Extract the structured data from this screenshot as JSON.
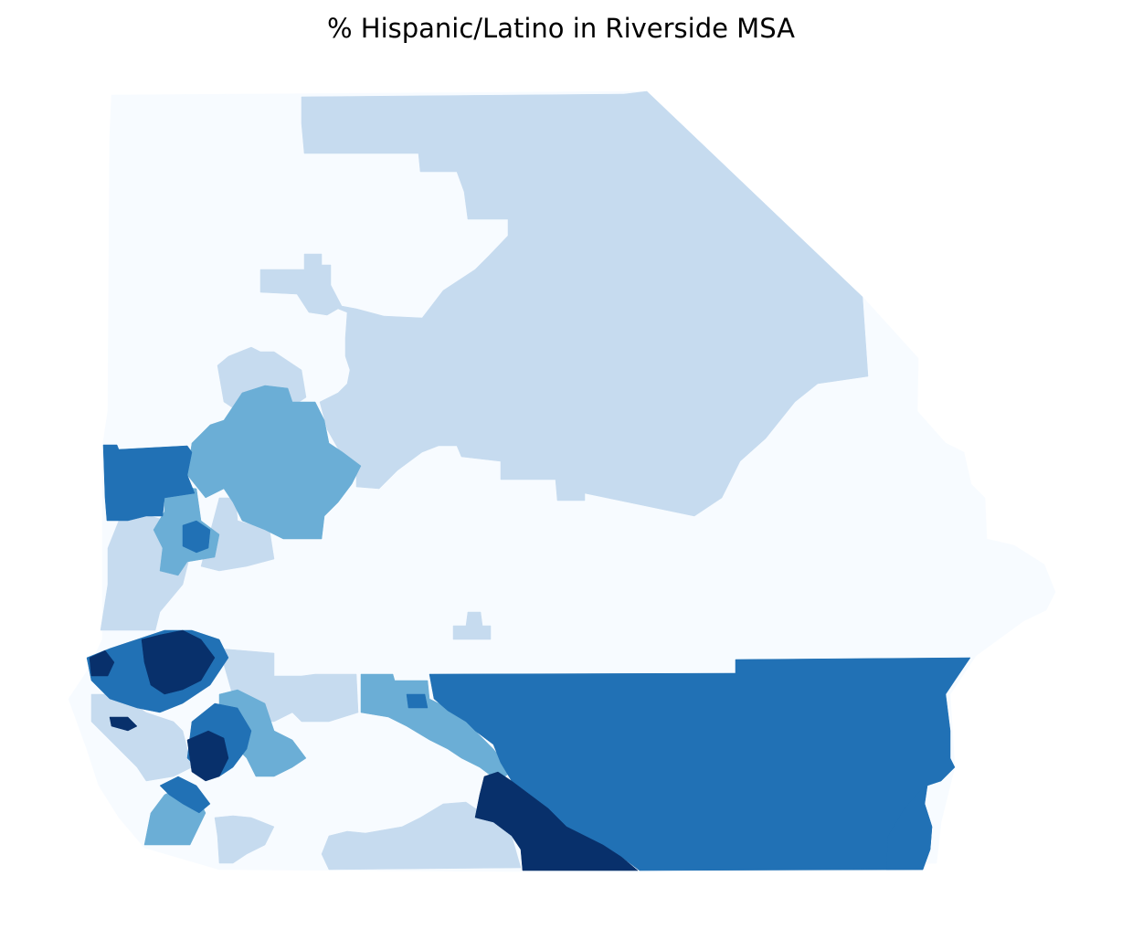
{
  "title": "% Hispanic/Latino in Riverside MSA",
  "palette": {
    "c1": "#f7fbff",
    "c2": "#c6dbef",
    "c3": "#6baed6",
    "c4": "#2171b5",
    "c5": "#08306b"
  }
}
